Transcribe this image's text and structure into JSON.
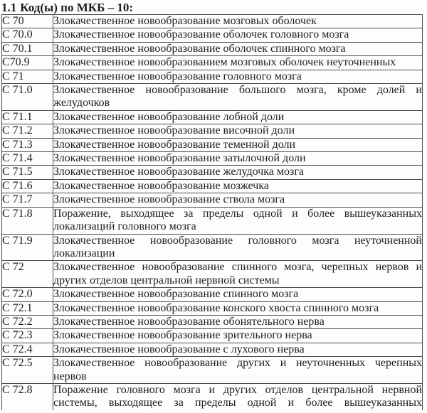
{
  "heading": {
    "number": "1.1",
    "title": "Код(ы) по МКБ – 10:"
  },
  "table": {
    "rows": [
      {
        "code": "С 70",
        "description": "Злокачественное новообразование мозговых оболочек"
      },
      {
        "code": "С 70.0",
        "description": "Злокачественное новообразование оболочек головного мозга"
      },
      {
        "code": "С 70.1",
        "description": "Злокачественное новообразование оболочек спинного мозга"
      },
      {
        "code": "С70.9",
        "description": "Злокачественное новообразованием мозговых оболочек неуточненных"
      },
      {
        "code": "С 71",
        "description": "Злокачественное новообразование головного мозга"
      },
      {
        "code": "С 71.0",
        "description": "Злокачественное новообразование большого мозга, кроме долей и желудочков"
      },
      {
        "code": "С 71.1",
        "description": "Злокачественное новообразование лобной доли"
      },
      {
        "code": "С 71.2",
        "description": "Злокачественное новообразование височной доли"
      },
      {
        "code": "С 71.3",
        "description": "Злокачественное новообразование теменной доли"
      },
      {
        "code": "С 71.4",
        "description": "Злокачественное новообразование затылочной доли"
      },
      {
        "code": "С 71.5",
        "description": "Злокачественное новообразование желудочка мозга"
      },
      {
        "code": "С 71.6",
        "description": "Злокачественное новообразование мозжечка"
      },
      {
        "code": "С 71.7",
        "description": "Злокачественное новообразование ствола мозга"
      },
      {
        "code": "С 71.8",
        "description": "Поражение, выходящее за пределы одной и более вышеуказанных локализаций головного мозга"
      },
      {
        "code": "С 71.9",
        "description": "Злокачественное новообразование головного мозга неуточненной локализации"
      },
      {
        "code": "С 72",
        "description": "Злокачественное новообразование спинного мозга, черепных нервов и других отделов центральной нервной системы"
      },
      {
        "code": "С 72.0",
        "description": "Злокачественное новообразование спинного мозга"
      },
      {
        "code": "С 72.1",
        "description": "Злокачественное новообразование конского хвоста спинного мозга"
      },
      {
        "code": "С 72.2",
        "description": "Злокачественное новообразование обонятельного нерва"
      },
      {
        "code": "С 72.3",
        "description": "Злокачественное новообразование зрительного нерва"
      },
      {
        "code": "С 72.4",
        "description": "Злокачественное новообразование с лухового нерва"
      },
      {
        "code": "С 72.5",
        "description": "Злокачественное новообразование других и неуточненных черепных нервов"
      },
      {
        "code": "С 72.8",
        "description": "Поражение головного мозга и других отделов центральной нервной системы, выходящее за пределы одной и более вышеуказанных"
      }
    ]
  }
}
